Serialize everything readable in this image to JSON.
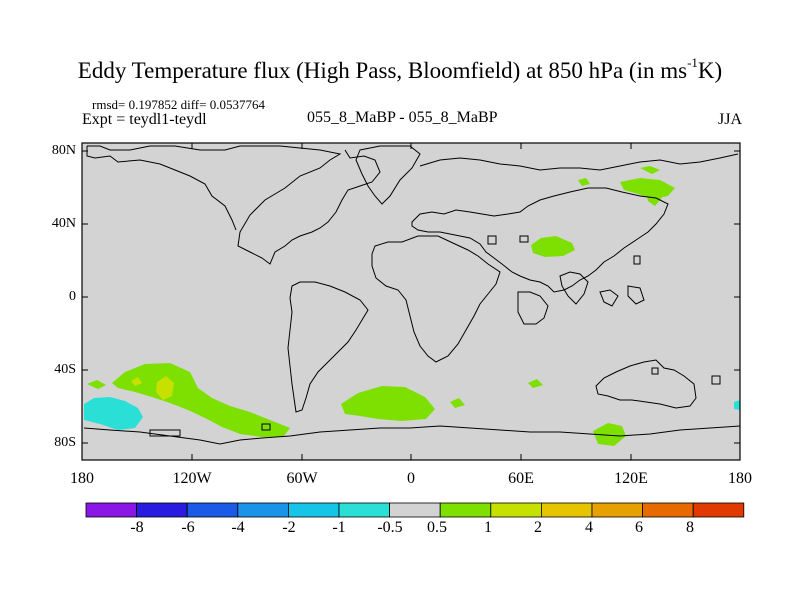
{
  "title": {
    "main": "Eddy Temperature flux (High Pass, Bloomfield) at 850 hPa (in ms",
    "sup": "-1",
    "end": "K)"
  },
  "header": {
    "stats": "rmsd= 0.197852 diff= 0.0537764",
    "expt": "Expt = teydl1-teydl",
    "center": "055_8_MaBP - 055_8_MaBP",
    "season": "JJA"
  },
  "axes": {
    "y_ticks": [
      "80N",
      "40N",
      "0",
      "40S",
      "80S"
    ],
    "x_ticks": [
      "180",
      "120W",
      "60W",
      "0",
      "60E",
      "120E",
      "180"
    ]
  },
  "colorbar": {
    "labels": [
      "-8",
      "-6",
      "-4",
      "-2",
      "-1",
      "-0.5",
      "0.5",
      "1",
      "2",
      "4",
      "6",
      "8"
    ],
    "colors": [
      "#8a17e6",
      "#2a1be0",
      "#1a5ae6",
      "#1b93e8",
      "#15c4e6",
      "#2ae0d6",
      "#d3d3d3",
      "#7ee000",
      "#c6e000",
      "#e6c400",
      "#e6a000",
      "#e66a00",
      "#e03a00"
    ]
  },
  "palette": {
    "land_fill": "#d3d3d3",
    "positive_1": "#7ee000",
    "positive_2": "#c6e000",
    "negative_1": "#2ae0d6"
  }
}
